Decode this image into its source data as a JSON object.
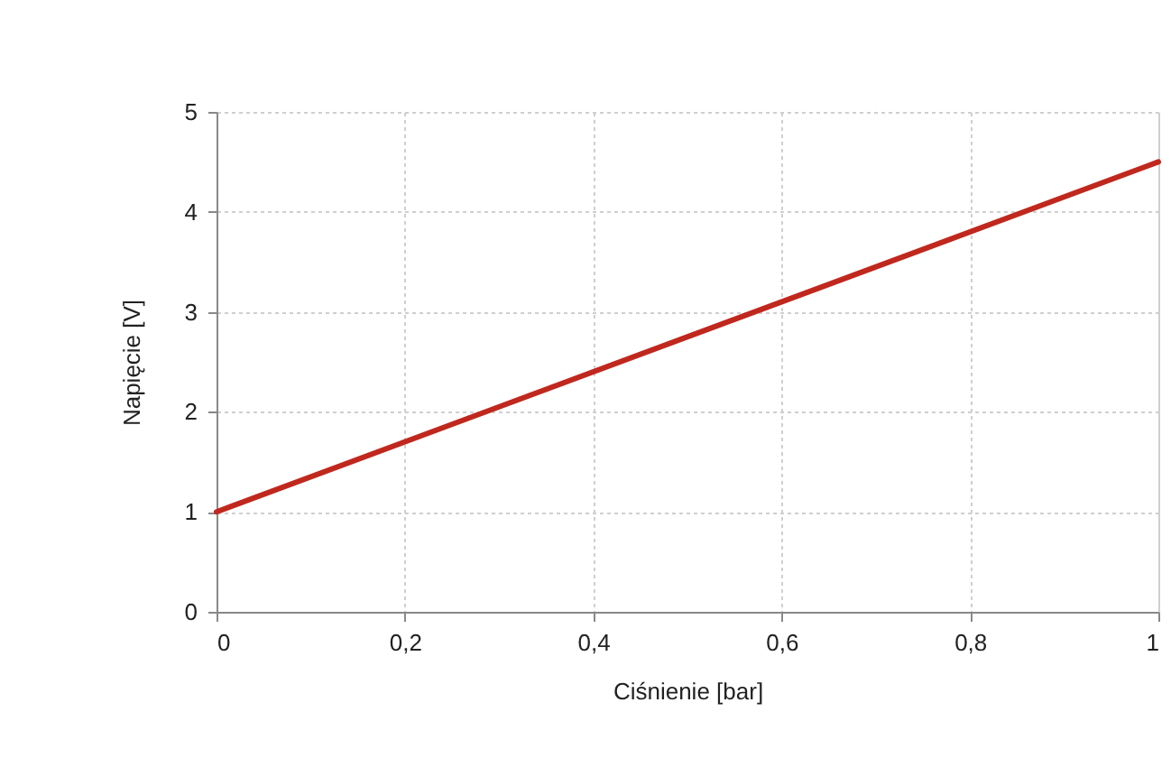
{
  "chart_data": {
    "type": "line",
    "xlabel": "Ciśnienie [bar]",
    "ylabel": "Napięcie [V]",
    "x": [
      0,
      1
    ],
    "series": [
      {
        "color": "#c0281e",
        "values": [
          1,
          4.5
        ]
      }
    ],
    "xlim": [
      0,
      1
    ],
    "ylim": [
      0,
      5
    ],
    "xticks": [
      0,
      {
        "value": 0.2,
        "label": "0,2"
      },
      {
        "value": 0.4,
        "label": "0,4"
      },
      {
        "value": 0.6,
        "label": "0,6"
      },
      {
        "value": 0.8,
        "label": "0,8"
      },
      1
    ],
    "yticks": [
      0,
      1,
      2,
      3,
      4,
      5
    ],
    "grid": true,
    "legend": false,
    "marker": "none",
    "line_style": "solid"
  }
}
